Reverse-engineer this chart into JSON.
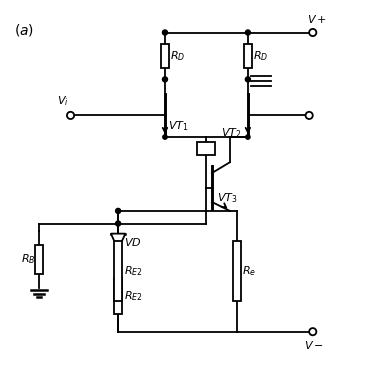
{
  "bg_color": "#ffffff",
  "line_color": "#000000",
  "label_color": "#000000",
  "figsize": [
    3.66,
    3.75
  ],
  "dpi": 100,
  "xlim": [
    0,
    10
  ],
  "ylim": [
    0,
    10
  ]
}
